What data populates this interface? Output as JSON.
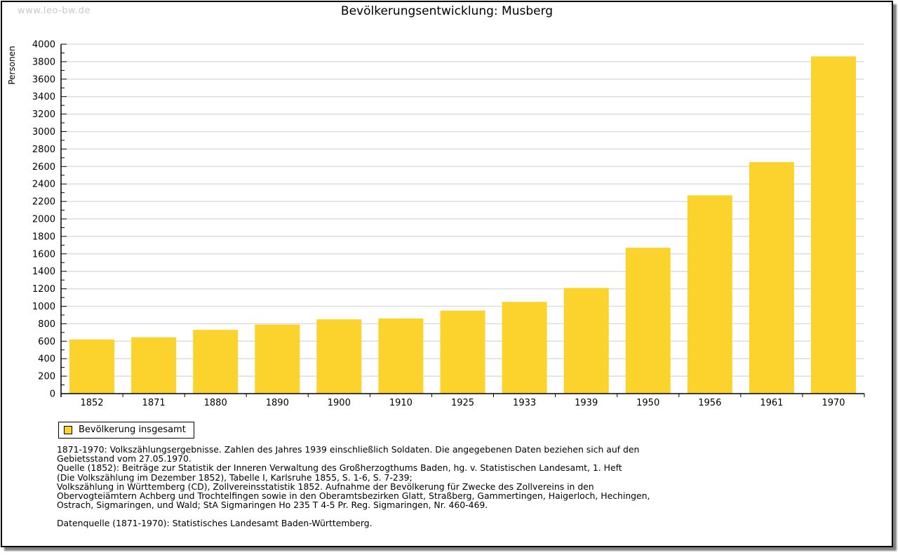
{
  "watermark": "www.leo-bw.de",
  "header": {
    "title": "Bevölkerungsentwicklung: Musberg"
  },
  "axes": {
    "y_label": "Personen"
  },
  "legend": {
    "items": [
      {
        "label": "Bevölkerung insgesamt",
        "color": "#FCD32D"
      }
    ]
  },
  "colors": {
    "bar": "#FCD32D",
    "grid": "#DDDDDD",
    "axis": "#000000",
    "watermark": "#C9C9C9"
  },
  "chart_data": {
    "type": "bar",
    "title": "Bevölkerungsentwicklung: Musberg",
    "categories": [
      "1852",
      "1871",
      "1880",
      "1890",
      "1900",
      "1910",
      "1925",
      "1933",
      "1939",
      "1950",
      "1956",
      "1961",
      "1970"
    ],
    "values": [
      620,
      645,
      730,
      790,
      850,
      860,
      950,
      1050,
      1210,
      1670,
      2270,
      2650,
      3860
    ],
    "xlabel": "",
    "ylabel": "Personen",
    "ylim": [
      0,
      4000
    ],
    "ytick_label_step": 200,
    "ytick_minor_step": 100,
    "grid": true,
    "legend_entries": [
      "Bevölkerung insgesamt"
    ],
    "legend_position": "bottom-left",
    "bar_color": "#FCD32D"
  },
  "notes": {
    "lines": [
      "1871-1970: Volkszählungsergebnisse. Zahlen des Jahres 1939 einschließlich Soldaten. Die angegebenen Daten beziehen sich auf den",
      "Gebietsstand vom 27.05.1970.",
      "Quelle (1852): Beiträge zur Statistik der Inneren Verwaltung des Großherzogthums Baden, hg. v. Statistischen Landesamt, 1. Heft",
      "(Die Volkszählung im Dezember 1852), Tabelle I, Karlsruhe 1855, S. 1-6, S. 7-239;",
      "Volkszählung in Württemberg (CD), Zollvereinsstatistik 1852. Aufnahme der Bevölkerung für Zwecke des Zollvereins in den",
      "Obervogteiämtern Achberg und Trochtelfingen sowie in den Oberamtsbezirken Glatt, Straßberg, Gammertingen, Haigerloch, Hechingen,",
      "Ostrach, Sigmaringen, und Wald; StA Sigmaringen Ho 235 T 4-5 Pr. Reg. Sigmaringen, Nr. 460-469."
    ],
    "source": "Datenquelle (1871-1970): Statistisches Landesamt Baden-Württemberg."
  }
}
